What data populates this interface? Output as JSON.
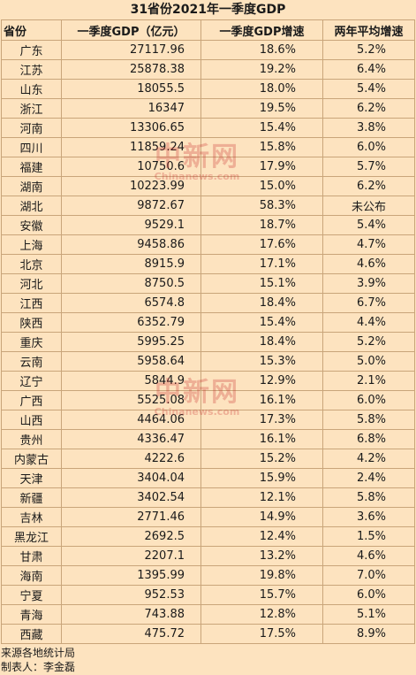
{
  "title": "31省份2021年一季度GDP",
  "headers": {
    "province": "省份",
    "gdp": "一季度GDP（亿元）",
    "growth": "一季度GDP增速",
    "avg_growth": "两年平均增速"
  },
  "rows": [
    {
      "province": "广东",
      "gdp": "27117.96",
      "growth": "18.6%",
      "avg": "5.2%"
    },
    {
      "province": "江苏",
      "gdp": "25878.38",
      "growth": "19.2%",
      "avg": "6.4%"
    },
    {
      "province": "山东",
      "gdp": "18055.5",
      "growth": "18.0%",
      "avg": "5.4%"
    },
    {
      "province": "浙江",
      "gdp": "16347",
      "growth": "19.5%",
      "avg": "6.2%"
    },
    {
      "province": "河南",
      "gdp": "13306.65",
      "growth": "15.4%",
      "avg": "3.8%"
    },
    {
      "province": "四川",
      "gdp": "11859.24",
      "growth": "15.8%",
      "avg": "6.0%"
    },
    {
      "province": "福建",
      "gdp": "10750.6",
      "growth": "17.9%",
      "avg": "5.7%"
    },
    {
      "province": "湖南",
      "gdp": "10223.99",
      "growth": "15.0%",
      "avg": "6.2%"
    },
    {
      "province": "湖北",
      "gdp": "9872.67",
      "growth": "58.3%",
      "avg": "未公布"
    },
    {
      "province": "安徽",
      "gdp": "9529.1",
      "growth": "18.7%",
      "avg": "5.4%"
    },
    {
      "province": "上海",
      "gdp": "9458.86",
      "growth": "17.6%",
      "avg": "4.7%"
    },
    {
      "province": "北京",
      "gdp": "8915.9",
      "growth": "17.1%",
      "avg": "4.6%"
    },
    {
      "province": "河北",
      "gdp": "8750.5",
      "growth": "15.1%",
      "avg": "3.9%"
    },
    {
      "province": "江西",
      "gdp": "6574.8",
      "growth": "18.4%",
      "avg": "6.7%"
    },
    {
      "province": "陕西",
      "gdp": "6352.79",
      "growth": "15.4%",
      "avg": "4.4%"
    },
    {
      "province": "重庆",
      "gdp": "5995.25",
      "growth": "18.4%",
      "avg": "5.2%"
    },
    {
      "province": "云南",
      "gdp": "5958.64",
      "growth": "15.3%",
      "avg": "5.0%"
    },
    {
      "province": "辽宁",
      "gdp": "5844.9",
      "growth": "12.9%",
      "avg": "2.1%"
    },
    {
      "province": "广西",
      "gdp": "5525.08",
      "growth": "16.1%",
      "avg": "6.0%"
    },
    {
      "province": "山西",
      "gdp": "4464.06",
      "growth": "17.3%",
      "avg": "5.8%"
    },
    {
      "province": "贵州",
      "gdp": "4336.47",
      "growth": "16.1%",
      "avg": "6.8%"
    },
    {
      "province": "内蒙古",
      "gdp": "4222.6",
      "growth": "15.2%",
      "avg": "4.2%"
    },
    {
      "province": "天津",
      "gdp": "3404.04",
      "growth": "15.9%",
      "avg": "2.4%"
    },
    {
      "province": "新疆",
      "gdp": "3402.54",
      "growth": "12.1%",
      "avg": "5.8%"
    },
    {
      "province": "吉林",
      "gdp": "2771.46",
      "growth": "14.9%",
      "avg": "3.6%"
    },
    {
      "province": "黑龙江",
      "gdp": "2692.5",
      "growth": "12.4%",
      "avg": "1.5%"
    },
    {
      "province": "甘肃",
      "gdp": "2207.1",
      "growth": "13.2%",
      "avg": "4.6%"
    },
    {
      "province": "海南",
      "gdp": "1395.99",
      "growth": "19.8%",
      "avg": "7.0%"
    },
    {
      "province": "宁夏",
      "gdp": "952.53",
      "growth": "15.7%",
      "avg": "6.0%"
    },
    {
      "province": "青海",
      "gdp": "743.88",
      "growth": "12.8%",
      "avg": "5.1%"
    },
    {
      "province": "西藏",
      "gdp": "475.72",
      "growth": "17.5%",
      "avg": "8.9%"
    }
  ],
  "footer": {
    "source": "来源各地统计局",
    "author": "制表人：李金磊"
  },
  "watermark": {
    "logo": "中新网",
    "site": "Chinanews.com"
  }
}
